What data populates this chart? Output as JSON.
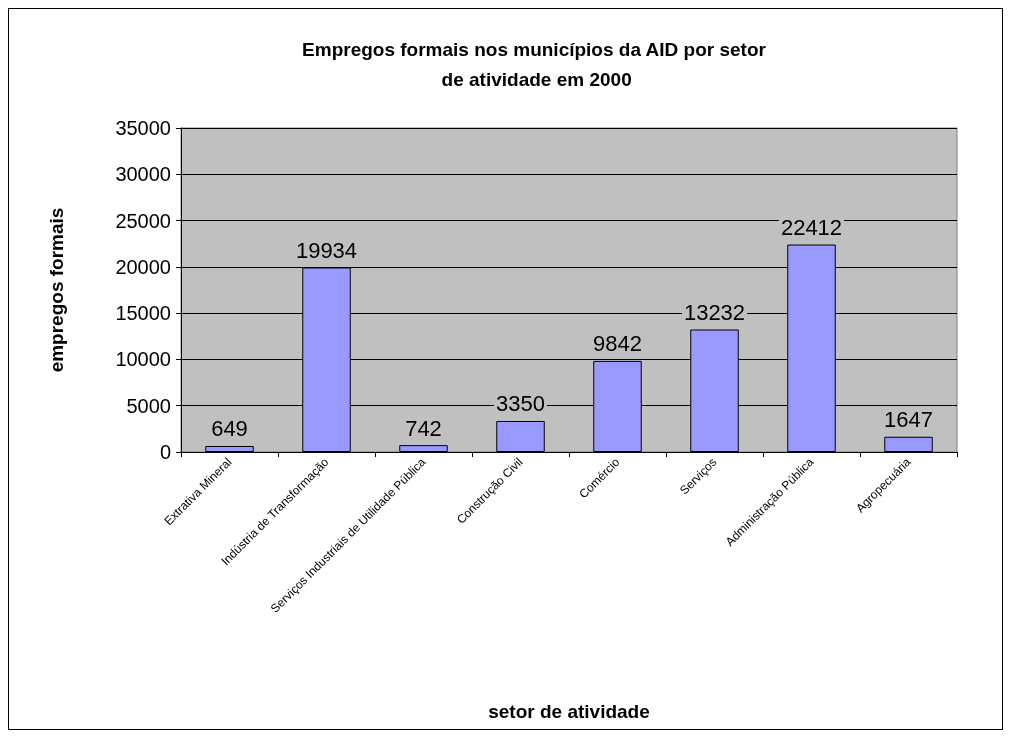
{
  "chart_data": {
    "type": "bar",
    "title": "Empregos formais nos municípios da AID por setor de atividade em 2000",
    "xlabel": "setor de atividade",
    "ylabel": "empregos formais",
    "categories": [
      "Extrativa Mineral",
      "Indústria de Transformação",
      "Serviços Industriais de Utilidade Pública",
      "Construção Civil",
      "Comércio",
      "Serviços",
      "Administração Pública",
      "Agropecuária"
    ],
    "values": [
      649,
      19934,
      742,
      3350,
      9842,
      13232,
      22412,
      1647
    ],
    "color": "#9999ff",
    "ylim": [
      0,
      35000
    ],
    "yticks": [
      0,
      5000,
      10000,
      15000,
      20000,
      25000,
      30000,
      35000
    ],
    "grid": "y",
    "data_labels": true
  }
}
